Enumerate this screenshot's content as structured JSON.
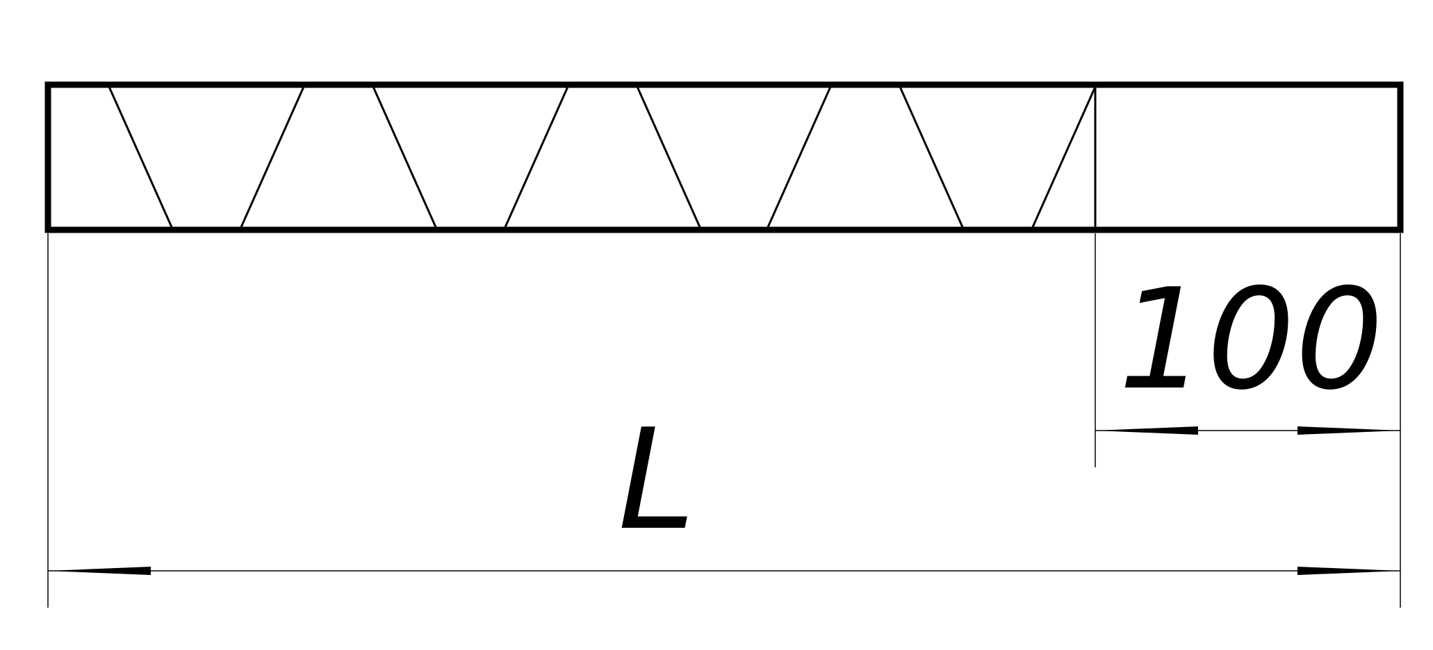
{
  "diagram": {
    "dimensions": {
      "overall_length_label": "L",
      "end_segment_label": "100"
    },
    "colors": {
      "line": "#000000",
      "background": "#ffffff"
    }
  }
}
